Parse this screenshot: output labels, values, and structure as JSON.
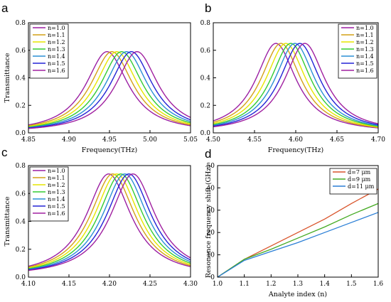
{
  "chart_data": [
    {
      "panel": "a",
      "type": "line",
      "xlabel": "Frequency(THz)",
      "ylabel": "Transmittance",
      "xlim": [
        4.85,
        5.05
      ],
      "ylim": [
        0,
        0.8
      ],
      "xticks": [
        "4.85",
        "4.90",
        "4.95",
        "5.00",
        "5.05"
      ],
      "yticks": [
        "0.0",
        "0.2",
        "0.4",
        "0.6",
        "0.8"
      ],
      "legend_position": "top-left",
      "peak_width_thz": 0.032,
      "series": [
        {
          "name": "n=1.0",
          "color": "#9b1fa3",
          "peak_x": 4.947,
          "peak_y": 0.59
        },
        {
          "name": "n=1.1",
          "color": "#d4a017",
          "peak_x": 4.953,
          "peak_y": 0.59
        },
        {
          "name": "n=1.2",
          "color": "#e6e600",
          "peak_x": 4.959,
          "peak_y": 0.59
        },
        {
          "name": "n=1.3",
          "color": "#33cc33",
          "peak_x": 4.965,
          "peak_y": 0.59
        },
        {
          "name": "n=1.4",
          "color": "#2b8fd6",
          "peak_x": 4.971,
          "peak_y": 0.59
        },
        {
          "name": "n=1.5",
          "color": "#2323d6",
          "peak_x": 4.977,
          "peak_y": 0.59
        },
        {
          "name": "n=1.6",
          "color": "#a020a0",
          "peak_x": 4.984,
          "peak_y": 0.59
        }
      ]
    },
    {
      "panel": "b",
      "type": "line",
      "xlabel": "Frequency(THz)",
      "ylabel": "",
      "xlim": [
        4.5,
        4.7
      ],
      "ylim": [
        0,
        0.8
      ],
      "xticks": [
        "4.50",
        "4.55",
        "4.60",
        "4.65",
        "4.70"
      ],
      "yticks": [
        "0.0",
        "0.2",
        "0.4",
        "0.6",
        "0.8"
      ],
      "legend_position": "top-right",
      "peak_width_thz": 0.03,
      "series": [
        {
          "name": "n=1.0",
          "color": "#9b1fa3",
          "peak_x": 4.576,
          "peak_y": 0.65
        },
        {
          "name": "n=1.1",
          "color": "#d4a017",
          "peak_x": 4.582,
          "peak_y": 0.65
        },
        {
          "name": "n=1.2",
          "color": "#e6e600",
          "peak_x": 4.588,
          "peak_y": 0.65
        },
        {
          "name": "n=1.3",
          "color": "#33cc33",
          "peak_x": 4.594,
          "peak_y": 0.65
        },
        {
          "name": "n=1.4",
          "color": "#2b8fd6",
          "peak_x": 4.599,
          "peak_y": 0.65
        },
        {
          "name": "n=1.5",
          "color": "#2323d6",
          "peak_x": 4.605,
          "peak_y": 0.65
        },
        {
          "name": "n=1.6",
          "color": "#a020a0",
          "peak_x": 4.611,
          "peak_y": 0.65
        }
      ]
    },
    {
      "panel": "c",
      "type": "line",
      "xlabel": "",
      "ylabel": "Transmittance",
      "xlim": [
        4.1,
        4.3
      ],
      "ylim": [
        0,
        0.8
      ],
      "xticks": [
        "4.10",
        "4.15",
        "4.20",
        "4.25",
        "4.30"
      ],
      "yticks": [
        "0.0",
        "0.2",
        "0.4",
        "0.6",
        "0.8"
      ],
      "legend_position": "top-left",
      "peak_width_thz": 0.034,
      "series": [
        {
          "name": "n=1.0",
          "color": "#9b1fa3",
          "peak_x": 4.199,
          "peak_y": 0.74
        },
        {
          "name": "n=1.1",
          "color": "#d4a017",
          "peak_x": 4.204,
          "peak_y": 0.74
        },
        {
          "name": "n=1.2",
          "color": "#e6e600",
          "peak_x": 4.209,
          "peak_y": 0.74
        },
        {
          "name": "n=1.3",
          "color": "#33cc33",
          "peak_x": 4.214,
          "peak_y": 0.74
        },
        {
          "name": "n=1.4",
          "color": "#2b8fd6",
          "peak_x": 4.219,
          "peak_y": 0.74
        },
        {
          "name": "n=1.5",
          "color": "#2323d6",
          "peak_x": 4.224,
          "peak_y": 0.74
        },
        {
          "name": "n=1.6",
          "color": "#a020a0",
          "peak_x": 4.229,
          "peak_y": 0.74
        }
      ]
    },
    {
      "panel": "d",
      "type": "line",
      "xlabel": "Analyte index (n)",
      "ylabel": "Resonance frequency shift (GHz)",
      "xlim": [
        1.0,
        1.6
      ],
      "ylim": [
        0,
        50
      ],
      "xticks": [
        "1.0",
        "1.1",
        "1.2",
        "1.3",
        "1.4",
        "1.5",
        "1.6"
      ],
      "yticks": [
        "0",
        "10",
        "20",
        "30",
        "40",
        "50"
      ],
      "legend_position": "top-right",
      "series": [
        {
          "name": "d=7 μm",
          "color": "#d9542b",
          "x": [
            1.0,
            1.1,
            1.2,
            1.3,
            1.4,
            1.5,
            1.6
          ],
          "values": [
            0,
            8,
            14,
            20,
            26,
            33,
            39.5
          ]
        },
        {
          "name": "d=9 μm",
          "color": "#44aa22",
          "x": [
            1.0,
            1.1,
            1.2,
            1.3,
            1.4,
            1.5,
            1.6
          ],
          "values": [
            0,
            8,
            12.5,
            17.5,
            22.5,
            28,
            33
          ]
        },
        {
          "name": "d=11 μm",
          "color": "#2b7fd6",
          "x": [
            1.0,
            1.1,
            1.2,
            1.3,
            1.4,
            1.5,
            1.6
          ],
          "values": [
            0,
            7.5,
            11.5,
            15.5,
            20,
            24.5,
            29
          ]
        }
      ]
    }
  ]
}
